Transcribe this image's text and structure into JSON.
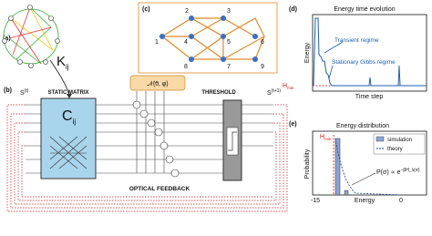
{
  "panels": {
    "a": {
      "label": "(a)",
      "kernel": "K",
      "kernel_sub": "ij"
    },
    "b": {
      "label": "(b)",
      "input": "S",
      "input_sup": "(t)",
      "output": "S",
      "output_sup": "(t+1)",
      "matrix_title": "STATIC MATRIX",
      "matrix": "C",
      "matrix_sub": "ij",
      "threshold": "THRESHOLD",
      "noise": "𝒩(0⃗, φ)",
      "feedback": "OPTICAL FEEDBACK"
    },
    "c": {
      "label": "(c)",
      "nodes": [
        "1",
        "2",
        "3",
        "4",
        "5",
        "6",
        "7",
        "8",
        "9"
      ]
    },
    "d": {
      "label": "(d)",
      "title": "Energy time evolution",
      "ylabel": "Energy",
      "xlabel": "Time step",
      "annotations": [
        "Transient regime",
        "Stationary Gibbs regime"
      ],
      "hmin": "H",
      "hmin_sub": "min"
    },
    "e": {
      "label": "(e)",
      "title": "Energy distribution",
      "ylabel": "Probability",
      "xlabel": "Energy",
      "xticks": [
        "-15",
        "0"
      ],
      "hmin": "H",
      "hmin_sub": "min",
      "legend": [
        "simulation",
        "theory"
      ],
      "formula": "P(σ) ∝ e",
      "formula_sup": "−βH_λ(σ)"
    }
  }
}
